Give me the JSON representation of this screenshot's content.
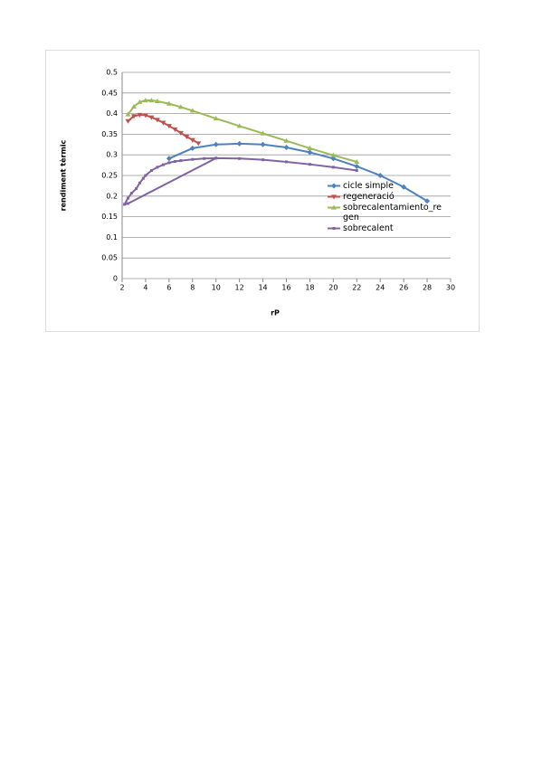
{
  "chart_data": {
    "type": "line",
    "x_label": "rP",
    "y_label": "rendiment tèrmic",
    "xlim": [
      2,
      30
    ],
    "xticks": [
      2,
      4,
      6,
      8,
      10,
      12,
      14,
      16,
      18,
      20,
      22,
      24,
      26,
      28,
      30
    ],
    "ylim": [
      0,
      0.5
    ],
    "yticks": [
      0,
      0.05,
      0.1,
      0.15,
      0.2,
      0.25,
      0.3,
      0.35,
      0.4,
      0.45,
      0.5
    ],
    "grid": true,
    "legend": "right",
    "series": [
      {
        "name": "cicle simple",
        "color": "#4f81bd",
        "marker": "diamond",
        "x": [
          6,
          8,
          10,
          12,
          14,
          16,
          18,
          20,
          22,
          24,
          26,
          28
        ],
        "values": [
          0.291,
          0.316,
          0.325,
          0.327,
          0.325,
          0.318,
          0.306,
          0.291,
          0.272,
          0.25,
          0.222,
          0.188
        ]
      },
      {
        "name": "regeneració",
        "color": "#c0504d",
        "marker": "triangle-down",
        "x": [
          2.5,
          3,
          3.5,
          4,
          4.5,
          5,
          5.5,
          6,
          6.5,
          7,
          7.5,
          8,
          8.5
        ],
        "values": [
          0.382,
          0.394,
          0.397,
          0.396,
          0.391,
          0.385,
          0.378,
          0.37,
          0.362,
          0.353,
          0.344,
          0.336,
          0.328
        ]
      },
      {
        "name": "sobrecalentamiento_regen",
        "color": "#9bbb59",
        "marker": "triangle-up",
        "x": [
          2.5,
          3,
          3.5,
          4,
          4.5,
          5,
          6,
          7,
          8,
          10,
          12,
          14,
          16,
          18,
          20,
          22
        ],
        "values": [
          0.398,
          0.417,
          0.428,
          0.432,
          0.432,
          0.43,
          0.424,
          0.416,
          0.407,
          0.388,
          0.37,
          0.352,
          0.334,
          0.316,
          0.299,
          0.283
        ]
      },
      {
        "name": "sobrecalent",
        "color": "#8064a2",
        "marker": "dash",
        "x": [
          10,
          2.5,
          2.2,
          2.5,
          2.8,
          3.2,
          3.5,
          3.8,
          4,
          4.5,
          5,
          5.5,
          6,
          6.5,
          7,
          8,
          9,
          10,
          12,
          14,
          16,
          18,
          20,
          22
        ],
        "values": [
          0.292,
          0.182,
          0.18,
          0.195,
          0.207,
          0.218,
          0.232,
          0.243,
          0.25,
          0.262,
          0.27,
          0.276,
          0.281,
          0.284,
          0.286,
          0.289,
          0.291,
          0.292,
          0.291,
          0.288,
          0.283,
          0.277,
          0.27,
          0.262
        ]
      }
    ]
  }
}
